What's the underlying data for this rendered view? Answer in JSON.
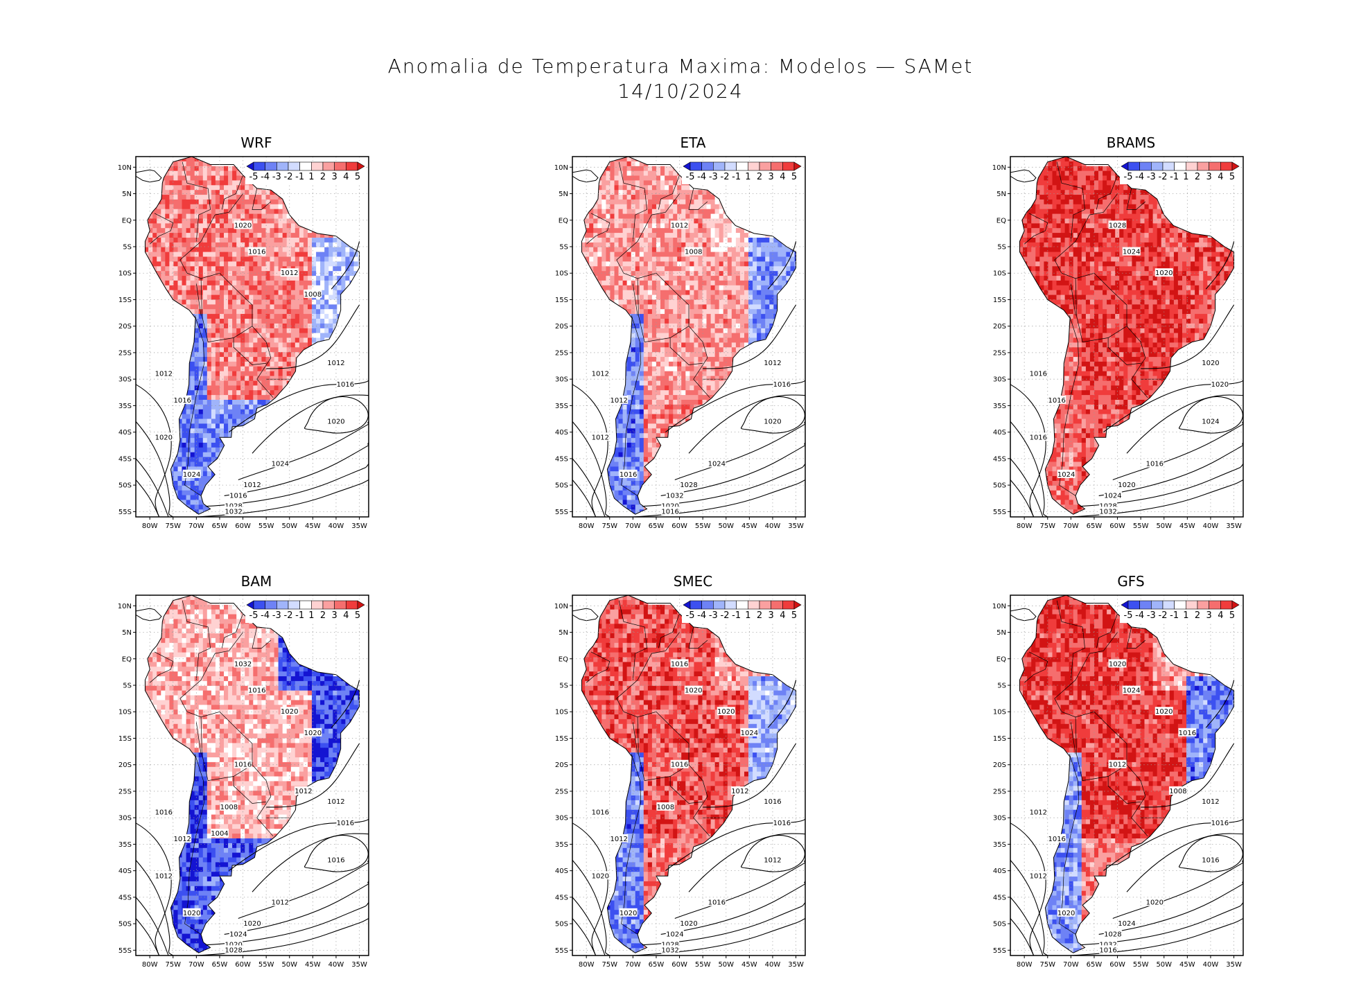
{
  "figure": {
    "title_line1": "Anomalia de Temperatura Maxima: Modelos — SAMet",
    "title_line2": "14/10/2024"
  },
  "axes": {
    "lat_ticks": [
      "10N",
      "5N",
      "EQ",
      "5S",
      "10S",
      "15S",
      "20S",
      "25S",
      "30S",
      "35S",
      "40S",
      "45S",
      "50S",
      "55S"
    ],
    "lon_ticks": [
      "80W",
      "75W",
      "70W",
      "65W",
      "60W",
      "55W",
      "50W",
      "45W",
      "40W",
      "35W"
    ]
  },
  "colorbar": {
    "labels": [
      "-5",
      "-4",
      "-3",
      "-2",
      "-1",
      "1",
      "2",
      "3",
      "4",
      "5"
    ],
    "colors": [
      "#1414d2",
      "#3c50f0",
      "#6e82f5",
      "#a0b4fa",
      "#d2dcff",
      "#ffffff",
      "#ffd2d2",
      "#faa0a0",
      "#f56e6e",
      "#f03c3c",
      "#d21414"
    ]
  },
  "palette": {
    "warm": "#e8281e",
    "warm_light": "#f58c82",
    "cool": "#1e28dc",
    "cool_light": "#8c9cf0",
    "neutral": "#f4f0f0",
    "grid": "#9a9a9a",
    "coast": "#000000"
  },
  "panels": [
    {
      "name": "WRF",
      "isobar_labels": [
        "1012",
        "1016",
        "1020",
        "1024",
        "1012",
        "1016",
        "1020",
        "1024",
        "1012",
        "1016",
        "1028",
        "1032",
        "1020",
        "1016",
        "1012",
        "1008"
      ],
      "anomaly": {
        "north_east": 2.5,
        "amazon": 3.0,
        "andes": -3.5,
        "south": -3.0,
        "east_coast": -2.0
      }
    },
    {
      "name": "ETA",
      "isobar_labels": [
        "1012",
        "1012",
        "1012",
        "1016",
        "1012",
        "1016",
        "1020",
        "1024",
        "1028",
        "1032",
        "1020",
        "1016",
        "1012",
        "1008"
      ],
      "anomaly": {
        "north_east": 1.5,
        "amazon": 2.5,
        "andes": -3.5,
        "south": 3.0,
        "east_coast": -3.0
      }
    },
    {
      "name": "BRAMS",
      "isobar_labels": [
        "1016",
        "1016",
        "1016",
        "1024",
        "1020",
        "1020",
        "1024",
        "1016",
        "1020",
        "1024",
        "1028",
        "1032",
        "1028",
        "1024",
        "1020"
      ],
      "anomaly": {
        "north_east": 4.0,
        "amazon": 4.5,
        "andes": 3.5,
        "south": 4.0,
        "east_coast": 4.0
      }
    },
    {
      "name": "BAM",
      "isobar_labels": [
        "1016",
        "1012",
        "1012",
        "1020",
        "1012",
        "1016",
        "1016",
        "1012",
        "1020",
        "1024",
        "1020",
        "1028",
        "1032",
        "1016",
        "1020",
        "1020",
        "1016",
        "1012",
        "1008",
        "1004"
      ],
      "anomaly": {
        "north_east": -4.5,
        "amazon": 2.0,
        "andes": -4.5,
        "south": -4.0,
        "east_coast": -4.5
      }
    },
    {
      "name": "SMEC",
      "isobar_labels": [
        "1016",
        "1012",
        "1020",
        "1020",
        "1016",
        "1016",
        "1012",
        "1016",
        "1020",
        "1024",
        "1028",
        "1032",
        "1016",
        "1020",
        "1020",
        "1024",
        "1016",
        "1012",
        "1008"
      ],
      "anomaly": {
        "north_east": 2.5,
        "amazon": 4.0,
        "andes": -3.5,
        "south": 3.5,
        "east_coast": -2.5
      }
    },
    {
      "name": "GFS",
      "isobar_labels": [
        "1012",
        "1016",
        "1012",
        "1020",
        "1012",
        "1016",
        "1016",
        "1020",
        "1024",
        "1028",
        "1032",
        "1016",
        "1020",
        "1024",
        "1020",
        "1016",
        "1012",
        "1008"
      ],
      "anomaly": {
        "north_east": 2.5,
        "amazon": 4.5,
        "andes": -3.0,
        "south": 3.0,
        "east_coast": -3.5
      }
    }
  ]
}
